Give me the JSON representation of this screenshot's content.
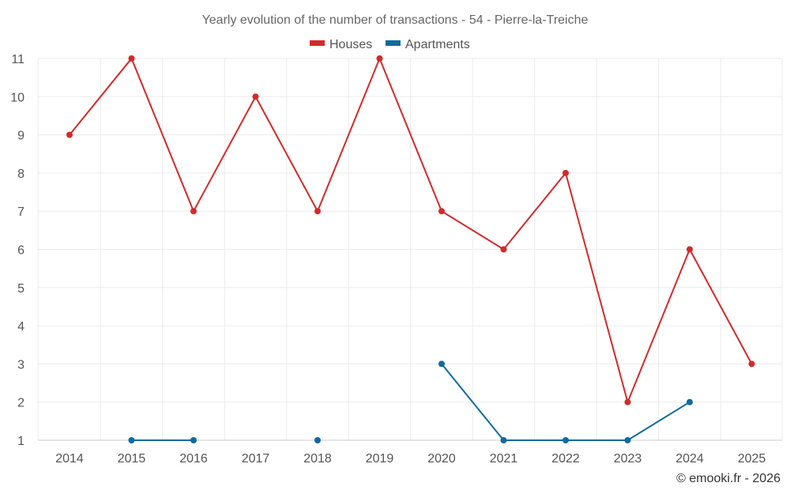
{
  "credit": "© emooki.fr - 2026",
  "chart_data": {
    "type": "line",
    "title": "Yearly evolution of the number of transactions - 54 - Pierre-la-Treiche",
    "xlabel": "",
    "ylabel": "",
    "x": [
      "2014",
      "2015",
      "2016",
      "2017",
      "2018",
      "2019",
      "2020",
      "2021",
      "2022",
      "2023",
      "2024",
      "2025"
    ],
    "ylim": [
      1,
      11
    ],
    "yticks": [
      1,
      2,
      3,
      4,
      5,
      6,
      7,
      8,
      9,
      10,
      11
    ],
    "grid": true,
    "legend_position": "top-center",
    "series": [
      {
        "name": "Houses",
        "color": "#d32a2a",
        "values": [
          9,
          11,
          7,
          10,
          7,
          11,
          7,
          6,
          8,
          2,
          6,
          3
        ]
      },
      {
        "name": "Apartments",
        "color": "#0f6aa0",
        "values": [
          null,
          1,
          1,
          null,
          1,
          null,
          3,
          1,
          1,
          1,
          2,
          null
        ]
      }
    ]
  }
}
